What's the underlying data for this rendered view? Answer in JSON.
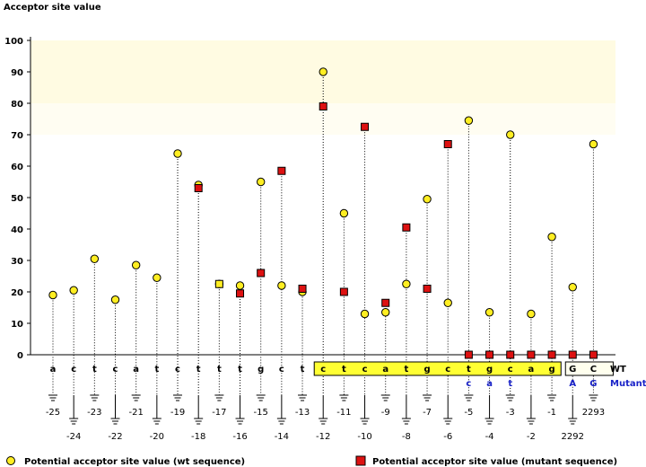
{
  "chart_data": {
    "type": "scatter",
    "title": "Acceptor site value",
    "ylim": [
      0,
      100
    ],
    "yticks": [
      0,
      10,
      20,
      30,
      40,
      50,
      60,
      70,
      80,
      90,
      100
    ],
    "highlight_bands": [
      [
        80,
        100
      ],
      [
        70,
        80
      ]
    ],
    "positions": [
      "-25",
      "-24",
      "-23",
      "-22",
      "-21",
      "-20",
      "-19",
      "-18",
      "-17",
      "-16",
      "-15",
      "-14",
      "-13",
      "-12",
      "-11",
      "-10",
      "-9",
      "-8",
      "-7",
      "-6",
      "-5",
      "-4",
      "-3",
      "-2",
      "-1",
      "2292",
      "2293"
    ],
    "wt_bases": [
      "a",
      "c",
      "t",
      "c",
      "a",
      "t",
      "c",
      "t",
      "t",
      "t",
      "g",
      "c",
      "t",
      "c",
      "t",
      "c",
      "a",
      "t",
      "g",
      "c",
      "t",
      "g",
      "c",
      "a",
      "g",
      "G",
      "C"
    ],
    "mutant_row_label": "Mutant",
    "wt_row_label": "WT",
    "mutant_bases": {
      "20": "c",
      "21": "a",
      "22": "t",
      "25": "A",
      "26": "G"
    },
    "highlighted_box": [
      13,
      25
    ],
    "exon_box": [
      25,
      26
    ],
    "series": [
      {
        "name": "Potential acceptor site value (wt sequence)",
        "marker": "circle",
        "color": "#ffee22",
        "values": [
          19,
          20.5,
          30.5,
          17.5,
          28.5,
          24.5,
          64,
          54,
          22.5,
          22,
          55,
          22,
          20,
          90,
          45,
          13,
          13.5,
          22.5,
          49.5,
          16.5,
          74.5,
          13.5,
          70,
          13,
          37.5,
          21.5,
          67
        ]
      },
      {
        "name": "Potential acceptor site value (mutant sequence)",
        "marker": "square",
        "color": "#dd1111",
        "values": [
          null,
          null,
          null,
          null,
          null,
          null,
          null,
          53,
          22.5,
          19.5,
          26,
          58.5,
          21,
          79,
          20,
          72.5,
          16.5,
          40.5,
          21,
          67,
          0,
          0,
          0,
          0,
          0,
          0,
          0
        ]
      }
    ]
  }
}
